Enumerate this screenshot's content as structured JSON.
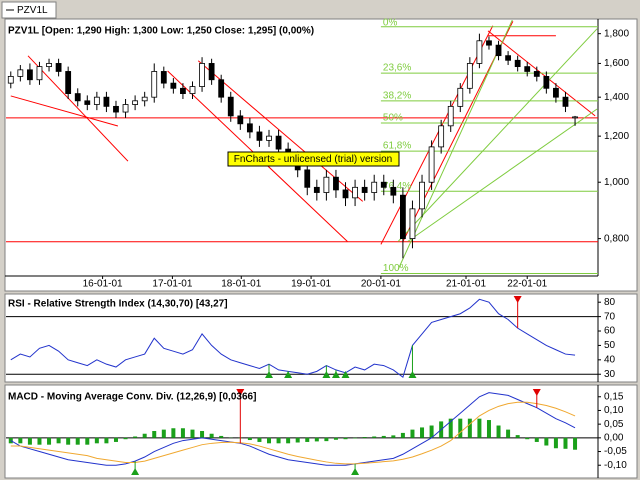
{
  "chart_data": [
    {
      "type": "candlestick",
      "tab": "PZV1L",
      "title": "PZV1L [Open: 1,290  High: 1,300  Low: 1,250  Close: 1,295] (0,00%)",
      "watermark": "FnCharts - unlicensed (trial) version",
      "xlim": [
        -0.5,
        61.4
      ],
      "xticks": [
        {
          "value": 9.6,
          "label": "16-01-01"
        },
        {
          "value": 16.9,
          "label": "17-01-01"
        },
        {
          "value": 24.1,
          "label": "18-01-01"
        },
        {
          "value": 31.4,
          "label": "19-01-01"
        },
        {
          "value": 38.7,
          "label": "20-01-01"
        },
        {
          "value": 47.6,
          "label": "21-01-01"
        },
        {
          "value": 54.0,
          "label": "22-01-01"
        }
      ],
      "log_scale": true,
      "ylim": [
        0.69,
        1.9
      ],
      "yticks": [
        {
          "value": 0.8,
          "label": "0,800"
        },
        {
          "value": 1.0,
          "label": "1,000"
        },
        {
          "value": 1.2,
          "label": "1,200"
        },
        {
          "value": 1.4,
          "label": "1,400"
        },
        {
          "value": 1.6,
          "label": "1,600"
        },
        {
          "value": 1.8,
          "label": "1,800"
        }
      ],
      "open": [
        1.48,
        1.52,
        1.56,
        1.5,
        1.58,
        1.6,
        1.55,
        1.42,
        1.38,
        1.36,
        1.4,
        1.35,
        1.32,
        1.36,
        1.38,
        1.4,
        1.55,
        1.48,
        1.45,
        1.42,
        1.46,
        1.6,
        1.5,
        1.4,
        1.3,
        1.26,
        1.22,
        1.18,
        1.2,
        1.14,
        1.1,
        1.05,
        0.98,
        0.96,
        1.02,
        0.97,
        0.94,
        0.98,
        0.96,
        1.0,
        0.98,
        0.95,
        0.8,
        0.9,
        1.0,
        1.15,
        1.25,
        1.35,
        1.45,
        1.6,
        1.75,
        1.72,
        1.65,
        1.62,
        1.58,
        1.55,
        1.52,
        1.45,
        1.4,
        1.29
      ],
      "high": [
        1.55,
        1.59,
        1.6,
        1.61,
        1.63,
        1.63,
        1.58,
        1.45,
        1.41,
        1.43,
        1.43,
        1.38,
        1.39,
        1.41,
        1.43,
        1.6,
        1.58,
        1.51,
        1.48,
        1.49,
        1.64,
        1.63,
        1.53,
        1.43,
        1.33,
        1.29,
        1.25,
        1.23,
        1.23,
        1.17,
        1.13,
        1.08,
        1.01,
        1.05,
        1.05,
        1.0,
        1.01,
        1.01,
        1.03,
        1.03,
        1.01,
        0.98,
        0.93,
        1.03,
        1.18,
        1.28,
        1.38,
        1.48,
        1.64,
        1.8,
        1.78,
        1.75,
        1.68,
        1.65,
        1.61,
        1.58,
        1.55,
        1.48,
        1.43,
        1.3
      ],
      "low": [
        1.45,
        1.49,
        1.47,
        1.47,
        1.55,
        1.52,
        1.39,
        1.35,
        1.33,
        1.33,
        1.32,
        1.29,
        1.29,
        1.33,
        1.35,
        1.37,
        1.45,
        1.42,
        1.39,
        1.39,
        1.43,
        1.47,
        1.37,
        1.27,
        1.23,
        1.19,
        1.15,
        1.15,
        1.11,
        1.07,
        1.02,
        0.95,
        0.93,
        0.93,
        0.94,
        0.91,
        0.91,
        0.93,
        0.93,
        0.95,
        0.92,
        0.74,
        0.77,
        0.87,
        0.97,
        1.12,
        1.22,
        1.32,
        1.42,
        1.57,
        1.69,
        1.62,
        1.59,
        1.55,
        1.52,
        1.49,
        1.42,
        1.37,
        1.32,
        1.25
      ],
      "close": [
        1.52,
        1.56,
        1.5,
        1.58,
        1.6,
        1.55,
        1.42,
        1.38,
        1.36,
        1.4,
        1.35,
        1.32,
        1.36,
        1.38,
        1.4,
        1.55,
        1.48,
        1.45,
        1.42,
        1.46,
        1.6,
        1.5,
        1.4,
        1.3,
        1.26,
        1.22,
        1.18,
        1.2,
        1.14,
        1.1,
        1.05,
        0.98,
        0.96,
        1.02,
        0.97,
        0.94,
        0.98,
        0.96,
        1.0,
        0.98,
        0.95,
        0.8,
        0.9,
        1.0,
        1.15,
        1.25,
        1.35,
        1.45,
        1.6,
        1.75,
        1.72,
        1.65,
        1.62,
        1.58,
        1.55,
        1.52,
        1.45,
        1.4,
        1.35,
        1.295
      ],
      "up_color": "#ffffff",
      "down_color": "#000000",
      "levels": [
        {
          "value": 1.29,
          "color": "#ff0000"
        },
        {
          "value": 0.79,
          "color": "#ff0000"
        }
      ],
      "trendlines": [
        {
          "x": [
            1.8,
            12.25
          ],
          "y": [
            1.649,
            1.087
          ],
          "color": "#ff0000"
        },
        {
          "x": [
            0.0,
            11.2
          ],
          "y": [
            1.407,
            1.249
          ],
          "color": "#ff0000"
        },
        {
          "x": [
            16.4,
            35.2
          ],
          "y": [
            1.553,
            0.791
          ],
          "color": "#ff0000"
        },
        {
          "x": [
            19.6,
            36.8
          ],
          "y": [
            1.617,
            0.927
          ],
          "color": "#ff0000"
        },
        {
          "x": [
            38.7,
            50.4
          ],
          "y": [
            0.782,
            1.857
          ],
          "color": "#ff0000"
        },
        {
          "x": [
            41.0,
            52.5
          ],
          "y": [
            0.791,
            1.89
          ],
          "color": "#ff0000"
        },
        {
          "x": [
            49.9,
            61.1
          ],
          "y": [
            1.82,
            1.3
          ],
          "color": "#ff0000"
        },
        {
          "x": [
            49.9,
            57.0
          ],
          "y": [
            1.785,
            1.785
          ],
          "color": "#ff0000"
        },
        {
          "x": [
            40.5,
            61.3
          ],
          "y": [
            0.791,
            1.835
          ],
          "color": "#7fcc3f"
        },
        {
          "x": [
            41.5,
            61.3
          ],
          "y": [
            0.791,
            1.336
          ],
          "color": "#7fcc3f"
        },
        {
          "x": [
            52.5,
            40.5
          ],
          "y": [
            1.91,
            0.708
          ],
          "color": "#7fcc3f"
        }
      ],
      "fib_color": "#7fcc3f",
      "fib_x": [
        38.7,
        61.4
      ],
      "fib_levels": [
        {
          "value": 1.85,
          "label": "0%"
        },
        {
          "value": 1.54,
          "label": "23,6%"
        },
        {
          "value": 1.38,
          "label": "38,2%"
        },
        {
          "value": 1.264,
          "label": "50%"
        },
        {
          "value": 1.131,
          "label": "61,8%"
        },
        {
          "value": 0.965,
          "label": "76,4%"
        },
        {
          "value": 0.697,
          "label": "100%"
        }
      ]
    },
    {
      "type": "line",
      "title": "RSI - Relative Strength Index (14,30,70) [43,27]",
      "xlim": [
        -0.5,
        61.4
      ],
      "ylim": [
        26,
        85
      ],
      "yticks": [
        30,
        40,
        50,
        60,
        70,
        80
      ],
      "levels": [
        70,
        30
      ],
      "color": "#2233cc",
      "values": [
        40,
        44,
        42,
        48,
        50,
        46,
        40,
        38,
        36,
        40,
        37,
        35,
        40,
        42,
        44,
        55,
        48,
        46,
        44,
        47,
        58,
        50,
        44,
        40,
        38,
        36,
        34,
        37,
        33,
        32,
        31,
        30,
        32,
        36,
        33,
        31,
        35,
        33,
        37,
        36,
        33,
        28,
        50,
        58,
        66,
        68,
        70,
        72,
        76,
        82,
        80,
        72,
        68,
        62,
        58,
        54,
        50,
        47,
        44,
        43.27
      ],
      "buy_signals": [
        27,
        29,
        33,
        34,
        35,
        42
      ],
      "sell_signals": [
        53
      ]
    },
    {
      "type": "macd",
      "title": "MACD - Moving Average Conv. Div. (12,26,9) [0,0366]",
      "xlim": [
        -0.5,
        61.4
      ],
      "ylim": [
        -0.143,
        0.182
      ],
      "yticks": [
        {
          "value": -0.1,
          "label": "-0,10"
        },
        {
          "value": -0.05,
          "label": "-0,05"
        },
        {
          "value": 0,
          "label": "0,00"
        },
        {
          "value": 0.05,
          "label": "0,05"
        },
        {
          "value": 0.1,
          "label": "0,10"
        },
        {
          "value": 0.15,
          "label": "0,15"
        }
      ],
      "levels": [
        0
      ],
      "series": [
        {
          "color": "#2233cc",
          "values": [
            -0.01,
            -0.03,
            -0.04,
            -0.05,
            -0.06,
            -0.07,
            -0.08,
            -0.085,
            -0.09,
            -0.095,
            -0.1,
            -0.1,
            -0.095,
            -0.085,
            -0.07,
            -0.05,
            -0.035,
            -0.02,
            -0.01,
            -0.005,
            0.0,
            -0.005,
            -0.01,
            -0.015,
            -0.02,
            -0.03,
            -0.045,
            -0.06,
            -0.07,
            -0.08,
            -0.085,
            -0.09,
            -0.095,
            -0.1,
            -0.1,
            -0.1,
            -0.095,
            -0.09,
            -0.085,
            -0.08,
            -0.075,
            -0.06,
            -0.04,
            -0.02,
            0.0,
            0.03,
            0.06,
            0.09,
            0.12,
            0.15,
            0.165,
            0.16,
            0.155,
            0.14,
            0.125,
            0.11,
            0.09,
            0.07,
            0.055,
            0.0366
          ]
        },
        {
          "color": "#f0a830",
          "values": [
            -0.03,
            -0.03,
            -0.035,
            -0.04,
            -0.045,
            -0.05,
            -0.055,
            -0.06,
            -0.065,
            -0.075,
            -0.08,
            -0.085,
            -0.09,
            -0.09,
            -0.085,
            -0.075,
            -0.065,
            -0.055,
            -0.045,
            -0.035,
            -0.025,
            -0.02,
            -0.017,
            -0.016,
            -0.018,
            -0.022,
            -0.03,
            -0.04,
            -0.05,
            -0.06,
            -0.068,
            -0.075,
            -0.082,
            -0.088,
            -0.093,
            -0.095,
            -0.095,
            -0.093,
            -0.09,
            -0.087,
            -0.084,
            -0.078,
            -0.07,
            -0.058,
            -0.045,
            -0.03,
            -0.01,
            0.02,
            0.05,
            0.08,
            0.1,
            0.115,
            0.125,
            0.13,
            0.13,
            0.125,
            0.118,
            0.108,
            0.095,
            0.08
          ]
        }
      ],
      "histogram": {
        "color": "#1aa01a",
        "values": [
          -0.02,
          -0.02,
          -0.025,
          -0.025,
          -0.025,
          -0.02,
          -0.025,
          -0.025,
          -0.025,
          -0.02,
          -0.02,
          -0.015,
          -0.005,
          0.005,
          0.015,
          0.025,
          0.03,
          0.035,
          0.035,
          0.03,
          0.025,
          0.015,
          0.007,
          0.001,
          -0.002,
          -0.008,
          -0.015,
          -0.02,
          -0.02,
          -0.02,
          -0.017,
          -0.015,
          -0.013,
          -0.012,
          -0.007,
          -0.005,
          -0.002,
          0.003,
          0.005,
          0.007,
          0.009,
          0.018,
          0.03,
          0.038,
          0.045,
          0.06,
          0.07,
          0.07,
          0.07,
          0.07,
          0.065,
          0.045,
          0.03,
          0.01,
          -0.005,
          -0.015,
          -0.028,
          -0.038,
          -0.04,
          -0.0434
        ]
      },
      "buy_signals": [
        13,
        36
      ],
      "sell_signals": [
        24,
        55
      ]
    }
  ]
}
